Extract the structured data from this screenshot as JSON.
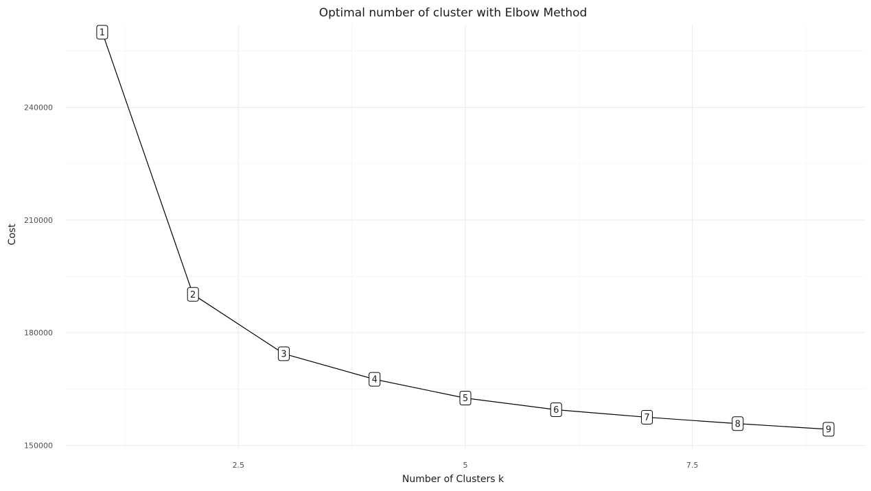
{
  "chart_data": {
    "type": "line",
    "title": "Optimal number of cluster with Elbow Method",
    "xlabel": "Number of Clusters k",
    "ylabel": "Cost",
    "x": [
      1,
      2,
      3,
      4,
      5,
      6,
      7,
      8,
      9
    ],
    "values": [
      260000,
      190200,
      174400,
      167600,
      162600,
      159500,
      157500,
      155800,
      154300
    ],
    "point_labels": [
      "1",
      "2",
      "3",
      "4",
      "5",
      "6",
      "7",
      "8",
      "9"
    ],
    "xlim": [
      0.6,
      9.4
    ],
    "ylim": [
      149000,
      262000
    ],
    "x_ticks": [
      2.5,
      5,
      7.5
    ],
    "x_tick_labels": [
      "2.5",
      "5",
      "7.5"
    ],
    "y_ticks": [
      150000,
      180000,
      210000,
      240000
    ],
    "y_tick_labels": [
      "150000",
      "180000",
      "210000",
      "240000"
    ],
    "grid": true,
    "legend": "none",
    "colors": {
      "line": "#000000",
      "grid_major": "#ebebeb",
      "grid_minor": "#f5f5f5",
      "label_fill": "#ffffff",
      "label_border": "#000000"
    }
  }
}
